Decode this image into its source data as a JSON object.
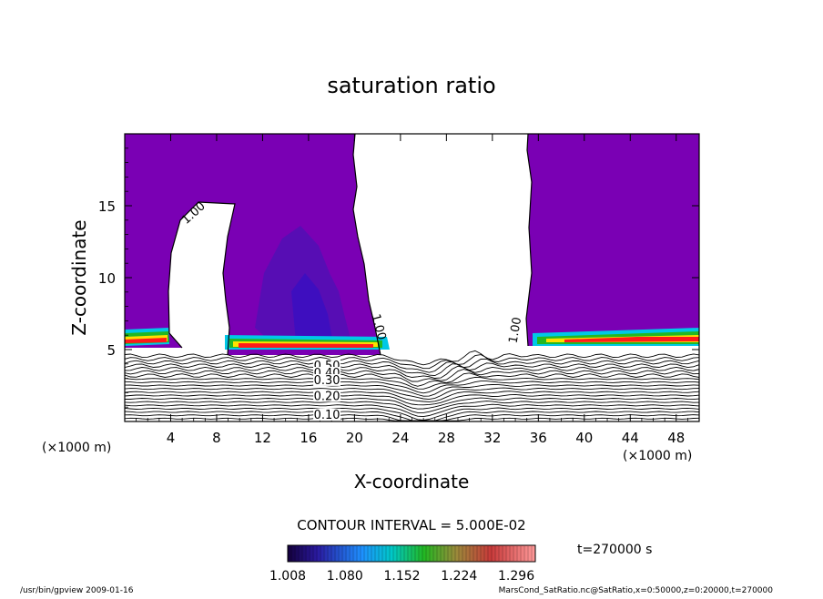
{
  "chart_data": {
    "type": "contour",
    "title": "saturation ratio",
    "xlabel": "X-coordinate",
    "ylabel": "Z-coordinate",
    "x_unit": "(×1000 m)",
    "y_unit": "(×1000 m)",
    "xlim": [
      0,
      50
    ],
    "ylim": [
      0,
      20
    ],
    "x_ticks": [
      4,
      8,
      12,
      16,
      20,
      24,
      28,
      32,
      36,
      40,
      44,
      48
    ],
    "y_ticks": [
      5,
      10,
      15
    ],
    "contour_labels": [
      {
        "text": "1.00",
        "x": 6.2,
        "z": 14.3,
        "angle": -42
      },
      {
        "text": "1.00",
        "x": 21.8,
        "z": 6.5,
        "angle": 75
      },
      {
        "text": "1.00",
        "x": 34.3,
        "z": 6.3,
        "angle": -80
      },
      {
        "text": "0.50",
        "x": 17.6,
        "z": 3.6,
        "angle": 0
      },
      {
        "text": "0.40",
        "x": 17.6,
        "z": 3.1,
        "angle": 0
      },
      {
        "text": "0.30",
        "x": 17.6,
        "z": 2.6,
        "angle": 0
      },
      {
        "text": "0.20",
        "x": 17.6,
        "z": 1.5,
        "angle": 0
      },
      {
        "text": "0.10",
        "x": 17.6,
        "z": 0.2,
        "angle": 0
      }
    ],
    "contour_interval_text": "CONTOUR INTERVAL = 5.000E-02",
    "colorbar": {
      "tick_labels": [
        "1.008",
        "1.080",
        "1.152",
        "1.224",
        "1.296"
      ],
      "min": 1.008,
      "max": 1.32
    },
    "time_label": "t=270000 s",
    "colors": {
      "supersaturated_fill": "#7a00b4",
      "deep_blue": "#2e10c8",
      "cyan": "#00c8e6",
      "green": "#22b822",
      "yellow": "#ffe000",
      "orange": "#ff7a00",
      "red": "#ff1a1a"
    }
  },
  "footer": {
    "program": "/usr/bin/gpview   2009-01-16",
    "source": "MarsCond_SatRatio.nc@SatRatio,x=0:50000,z=0:20000,t=270000"
  }
}
